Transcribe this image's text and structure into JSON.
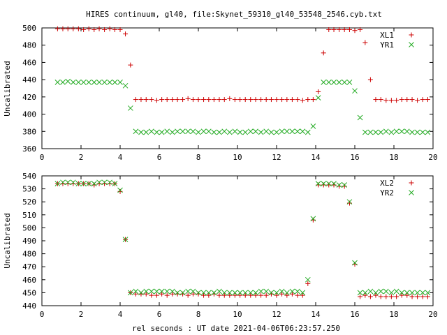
{
  "title": "HIRES continuum, gl40, file:Skynet_59310_gl40_53548_2546.cyb.txt",
  "xlabel": "rel seconds : UT date 2021-04-06T06:23:57.250",
  "colors": {
    "series1": "#cc0000",
    "series2": "#22aa22",
    "axis": "#000000"
  },
  "chart_data": [
    {
      "type": "scatter",
      "ylabel": "Uncalibrated",
      "xlim": [
        0,
        20
      ],
      "ylim": [
        360,
        500
      ],
      "xticks": [
        0,
        2,
        4,
        6,
        8,
        10,
        12,
        14,
        16,
        18,
        20
      ],
      "yticks": [
        360,
        380,
        400,
        420,
        440,
        460,
        480,
        500
      ],
      "legend_position": "top-right",
      "x": [
        0.8,
        1.07,
        1.33,
        1.6,
        1.87,
        2.13,
        2.4,
        2.67,
        2.93,
        3.2,
        3.47,
        3.73,
        4.0,
        4.27,
        4.53,
        4.8,
        5.07,
        5.33,
        5.6,
        5.87,
        6.13,
        6.4,
        6.67,
        6.93,
        7.2,
        7.47,
        7.73,
        8.0,
        8.27,
        8.53,
        8.8,
        9.07,
        9.33,
        9.6,
        9.87,
        10.13,
        10.4,
        10.67,
        10.93,
        11.2,
        11.47,
        11.73,
        12.0,
        12.27,
        12.53,
        12.8,
        13.07,
        13.33,
        13.6,
        13.87,
        14.13,
        14.4,
        14.67,
        14.93,
        15.2,
        15.47,
        15.73,
        16.0,
        16.27,
        16.53,
        16.8,
        17.07,
        17.33,
        17.6,
        17.87,
        18.13,
        18.4,
        18.67,
        18.93,
        19.2,
        19.47,
        19.73
      ],
      "series": [
        {
          "name": "XL1",
          "marker": "plus",
          "values": [
            499,
            499,
            499,
            499,
            499,
            498,
            499,
            498,
            499,
            498,
            499,
            498,
            498,
            493,
            457,
            417,
            417,
            417,
            417,
            416,
            417,
            417,
            417,
            417,
            417,
            418,
            417,
            417,
            417,
            417,
            417,
            417,
            417,
            418,
            417,
            417,
            417,
            417,
            417,
            417,
            417,
            417,
            417,
            417,
            417,
            417,
            417,
            416,
            417,
            417,
            426,
            471,
            498,
            498,
            498,
            498,
            498,
            497,
            498,
            483,
            440,
            417,
            417,
            416,
            416,
            416,
            417,
            417,
            417,
            416,
            417,
            417
          ]
        },
        {
          "name": "YR1",
          "marker": "cross",
          "values": [
            437,
            437,
            438,
            437,
            437,
            437,
            437,
            437,
            437,
            437,
            437,
            437,
            437,
            433,
            407,
            380,
            379,
            379,
            380,
            379,
            379,
            380,
            379,
            380,
            380,
            380,
            380,
            379,
            380,
            380,
            379,
            379,
            380,
            379,
            380,
            379,
            379,
            380,
            380,
            379,
            380,
            379,
            379,
            380,
            380,
            380,
            380,
            380,
            379,
            386,
            419,
            437,
            437,
            437,
            437,
            437,
            437,
            427,
            396,
            379,
            379,
            379,
            379,
            380,
            379,
            380,
            380,
            380,
            379,
            379,
            379,
            379
          ]
        }
      ]
    },
    {
      "type": "scatter",
      "ylabel": "Uncalibrated",
      "xlim": [
        0,
        20
      ],
      "ylim": [
        440,
        540
      ],
      "xticks": [
        0,
        2,
        4,
        6,
        8,
        10,
        12,
        14,
        16,
        18,
        20
      ],
      "yticks": [
        440,
        450,
        460,
        470,
        480,
        490,
        500,
        510,
        520,
        530,
        540
      ],
      "legend_position": "top-right",
      "x": [
        0.8,
        1.07,
        1.33,
        1.6,
        1.87,
        2.13,
        2.4,
        2.67,
        2.93,
        3.2,
        3.47,
        3.73,
        4.0,
        4.27,
        4.53,
        4.8,
        5.07,
        5.33,
        5.6,
        5.87,
        6.13,
        6.4,
        6.67,
        6.93,
        7.2,
        7.47,
        7.73,
        8.0,
        8.27,
        8.53,
        8.8,
        9.07,
        9.33,
        9.6,
        9.87,
        10.13,
        10.4,
        10.67,
        10.93,
        11.2,
        11.47,
        11.73,
        12.0,
        12.27,
        12.53,
        12.8,
        13.07,
        13.33,
        13.6,
        13.87,
        14.13,
        14.4,
        14.67,
        14.93,
        15.2,
        15.47,
        15.73,
        16.0,
        16.27,
        16.53,
        16.8,
        17.07,
        17.33,
        17.6,
        17.87,
        18.13,
        18.4,
        18.67,
        18.93,
        19.2,
        19.47,
        19.73
      ],
      "series": [
        {
          "name": "XL2",
          "marker": "plus",
          "values": [
            534,
            534,
            534,
            534,
            534,
            534,
            534,
            533,
            534,
            534,
            534,
            534,
            528,
            491,
            450,
            449,
            449,
            449,
            448,
            448,
            449,
            448,
            449,
            449,
            449,
            448,
            449,
            449,
            448,
            448,
            449,
            448,
            448,
            448,
            448,
            448,
            448,
            448,
            448,
            448,
            448,
            449,
            448,
            449,
            448,
            449,
            448,
            448,
            457,
            506,
            533,
            533,
            533,
            533,
            532,
            532,
            519,
            472,
            447,
            448,
            447,
            448,
            447,
            447,
            447,
            447,
            448,
            448,
            447,
            447,
            447,
            447
          ]
        },
        {
          "name": "YR2",
          "marker": "cross",
          "values": [
            534,
            535,
            535,
            535,
            534,
            534,
            534,
            534,
            535,
            535,
            535,
            534,
            529,
            491,
            450,
            451,
            450,
            451,
            451,
            451,
            451,
            451,
            451,
            450,
            450,
            451,
            451,
            450,
            450,
            450,
            450,
            451,
            450,
            450,
            450,
            450,
            450,
            450,
            450,
            451,
            451,
            450,
            450,
            451,
            450,
            451,
            451,
            450,
            460,
            507,
            534,
            534,
            534,
            534,
            533,
            533,
            520,
            473,
            450,
            450,
            451,
            450,
            451,
            451,
            450,
            451,
            450,
            450,
            450,
            450,
            450,
            450
          ]
        }
      ]
    }
  ]
}
